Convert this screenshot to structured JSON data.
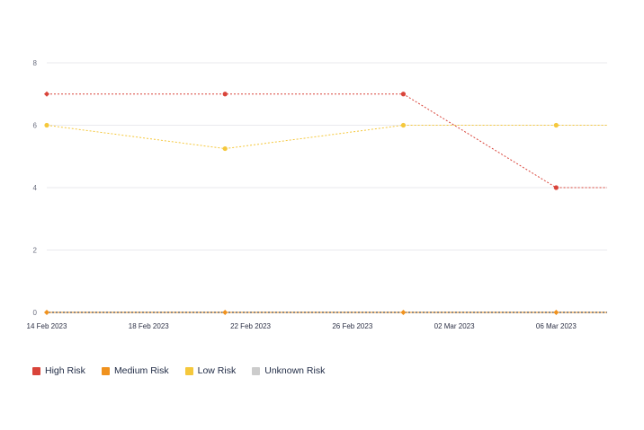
{
  "chart_data": {
    "type": "line",
    "title": "",
    "xlabel": "",
    "ylabel": "",
    "ylim": [
      0,
      8
    ],
    "yticks": [
      0,
      2,
      4,
      6,
      8
    ],
    "xlim": [
      "2023-02-14",
      "2023-03-08"
    ],
    "xticks": [
      "14 Feb 2023",
      "18 Feb 2023",
      "22 Feb 2023",
      "26 Feb 2023",
      "02 Mar 2023",
      "06 Mar 2023"
    ],
    "xtick_dates": [
      "2023-02-14",
      "2023-02-18",
      "2023-02-22",
      "2023-02-26",
      "2023-03-02",
      "2023-03-06"
    ],
    "x": [
      "2023-02-14",
      "2023-02-21",
      "2023-02-28",
      "2023-03-06"
    ],
    "grid": true,
    "legend_position": "bottom-left",
    "series": [
      {
        "name": "High Risk",
        "color": "#d9443a",
        "marker": "circle",
        "values": [
          7,
          7,
          7,
          4
        ]
      },
      {
        "name": "Medium Risk",
        "color": "#f0921e",
        "marker": "diamond",
        "values": [
          0,
          0,
          0,
          0
        ]
      },
      {
        "name": "Low Risk",
        "color": "#f5c83c",
        "marker": "circle",
        "values": [
          6,
          5.25,
          6,
          6
        ]
      },
      {
        "name": "Unknown Risk",
        "color": "#cccccc",
        "marker": "circle",
        "values": [
          0,
          0,
          0,
          0
        ]
      }
    ]
  }
}
